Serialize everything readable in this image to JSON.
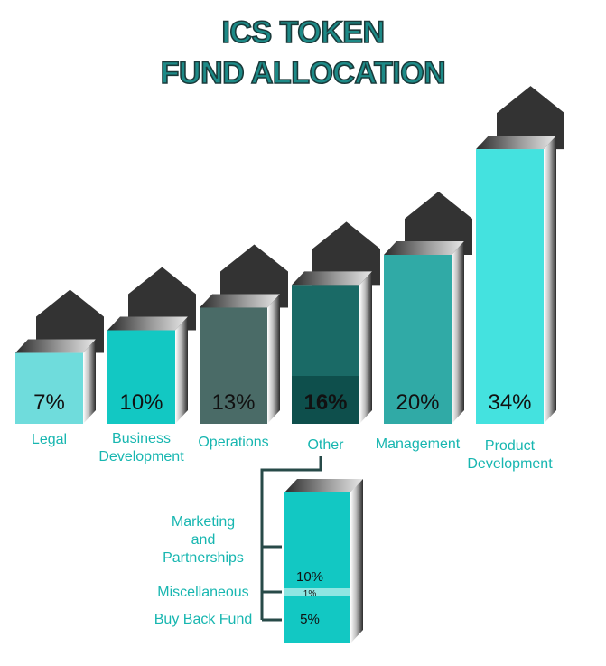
{
  "title": [
    "ICS TOKEN",
    "FUND ALLOCATION"
  ],
  "chart_data": {
    "type": "bar",
    "title": "ICS TOKEN FUND ALLOCATION",
    "categories": [
      "Legal",
      "Business\nDevelopment",
      "Operations",
      "Other",
      "Management",
      "Product\nDevelopment"
    ],
    "values": [
      7,
      10,
      13,
      16,
      20,
      34
    ],
    "value_labels": [
      "7%",
      "10%",
      "13%",
      "16%",
      "20%",
      "34%"
    ],
    "colors": [
      "#6fdcdc",
      "#12c8c3",
      "#4a6b67",
      "#1a6a66",
      "#30aaa6",
      "#44e2df"
    ],
    "breakdown": {
      "parent": "Other",
      "categories": [
        "Marketing\nand\nPartnerships",
        "Miscellaneous",
        "Buy Back Fund"
      ],
      "values": [
        10,
        1,
        5
      ],
      "value_labels": [
        "10%",
        "1%",
        "5%"
      ],
      "colors": [
        "#12c8c3",
        "#8ee6e2",
        "#12c8c3"
      ]
    },
    "grid": false,
    "legend": "none"
  }
}
